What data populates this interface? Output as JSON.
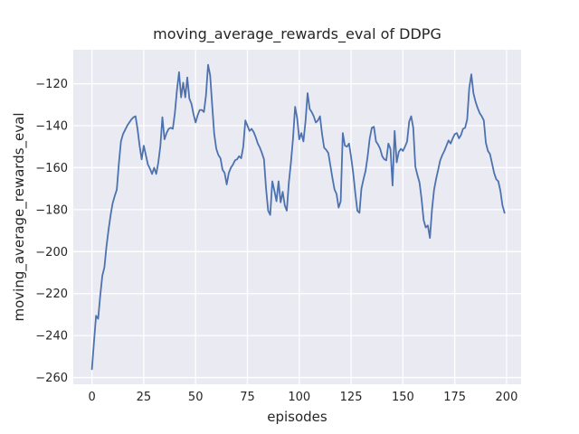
{
  "figure": {
    "kind": "matplotlib-seaborn line plot"
  },
  "chart_data": {
    "type": "line",
    "title": "moving_average_rewards_eval of DDPG",
    "xlabel": "episodes",
    "ylabel": "moving_average_rewards_eval",
    "x_ticks": [
      0,
      25,
      50,
      75,
      100,
      125,
      150,
      175,
      200
    ],
    "y_ticks": [
      -120,
      -140,
      -160,
      -180,
      -200,
      -220,
      -240,
      -260
    ],
    "xlim": [
      -9,
      207
    ],
    "ylim": [
      -263.2,
      -103.8
    ],
    "grid": true,
    "grid_color": "#ffffff",
    "axes_background": "#eaeaf2",
    "figure_background": "#ffffff",
    "line_color": "#4c72b0",
    "line_width": 1.8,
    "legend": "none",
    "series": [
      {
        "name": "moving_average_rewards_eval",
        "x_start": 0,
        "x_step": 1,
        "x_end": 199,
        "values": [
          -256,
          -243,
          -230.5,
          -232,
          -221,
          -211.5,
          -207.5,
          -197.5,
          -189.5,
          -182.5,
          -177,
          -173.5,
          -170.5,
          -158,
          -147.5,
          -144,
          -142,
          -140,
          -138.5,
          -137,
          -136,
          -135.5,
          -141.5,
          -149.5,
          -156,
          -149.5,
          -154,
          -158.5,
          -160.5,
          -163,
          -160,
          -163,
          -157.5,
          -149.5,
          -136,
          -146.5,
          -143.5,
          -141.5,
          -141,
          -141.5,
          -134,
          -123,
          -114.5,
          -126.5,
          -119.5,
          -126.5,
          -117,
          -127,
          -129.5,
          -134.5,
          -138.5,
          -135,
          -132.5,
          -132.5,
          -133.5,
          -125.5,
          -111,
          -116,
          -130,
          -144,
          -151,
          -154,
          -155.5,
          -161,
          -162.5,
          -168,
          -162.5,
          -160,
          -158.5,
          -156.5,
          -156,
          -154.5,
          -155.5,
          -150,
          -137.5,
          -140,
          -142.5,
          -141.5,
          -143,
          -145.5,
          -148.5,
          -150.5,
          -153,
          -156,
          -170,
          -180.5,
          -182.5,
          -166.5,
          -171,
          -176,
          -166.5,
          -176.5,
          -171.5,
          -178,
          -180.5,
          -167,
          -157.5,
          -146,
          -131,
          -136.5,
          -146.5,
          -143.5,
          -147.5,
          -138,
          -124.5,
          -132,
          -133.5,
          -135.5,
          -138.5,
          -137.5,
          -135.5,
          -144,
          -150.5,
          -151.5,
          -153,
          -159,
          -165,
          -170.5,
          -172.5,
          -179,
          -176,
          -143.5,
          -149.5,
          -150,
          -148.5,
          -155,
          -162.5,
          -172,
          -180.5,
          -181.5,
          -170,
          -165.5,
          -161.5,
          -154.5,
          -146,
          -141,
          -140.5,
          -147.5,
          -149,
          -151,
          -154.5,
          -156,
          -156.5,
          -148.5,
          -151,
          -168.5,
          -142.5,
          -157.5,
          -152.5,
          -151,
          -152,
          -150,
          -147.5,
          -138,
          -135.5,
          -141,
          -159.5,
          -163.5,
          -167,
          -175,
          -185,
          -188.5,
          -187.5,
          -193.5,
          -180,
          -170.5,
          -165.5,
          -161,
          -156.5,
          -154,
          -152,
          -149.5,
          -147,
          -148.5,
          -146,
          -144,
          -143.5,
          -146,
          -144.5,
          -141.5,
          -141,
          -137,
          -122,
          -115.5,
          -124.5,
          -128.5,
          -131.5,
          -134,
          -135.5,
          -137.5,
          -148,
          -152,
          -153.5,
          -158,
          -162.5,
          -165.5,
          -166.5,
          -171,
          -178,
          -181.5
        ]
      }
    ]
  }
}
